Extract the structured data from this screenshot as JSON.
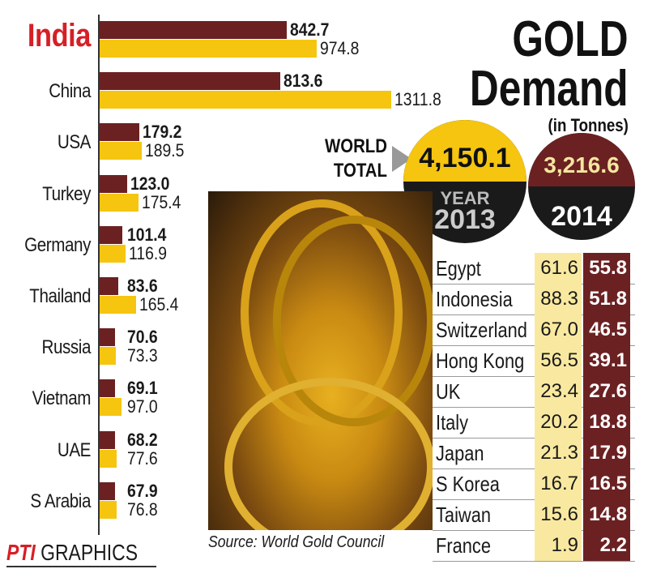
{
  "chart_data": {
    "type": "bar",
    "title": "GOLD Demand",
    "subtitle": "(in Tonnes)",
    "categories": [
      "India",
      "China",
      "USA",
      "Turkey",
      "Germany",
      "Thailand",
      "Russia",
      "Vietnam",
      "UAE",
      "S Arabia"
    ],
    "highlight_category": "India",
    "series": [
      {
        "name": "2014",
        "color": "#6b2122",
        "values": [
          842.7,
          813.6,
          179.2,
          123.0,
          101.4,
          83.6,
          70.6,
          69.1,
          68.2,
          67.9
        ],
        "labels": [
          "842.7",
          "813.6",
          "179.2",
          "123.0",
          "101.4",
          "83.6",
          "70.6",
          "69.1",
          "68.2",
          "67.9"
        ]
      },
      {
        "name": "2013",
        "color": "#f5c510",
        "values": [
          974.8,
          1311.8,
          189.5,
          175.4,
          116.9,
          165.4,
          73.3,
          97.0,
          77.6,
          76.8
        ],
        "labels": [
          "974.8",
          "1311.8",
          "189.5",
          "175.4",
          "116.9",
          "165.4",
          "73.3",
          "97.0",
          "77.6",
          "76.8"
        ]
      }
    ],
    "xlim": [
      0,
      1311.8
    ],
    "table": {
      "type": "table",
      "rows": [
        {
          "country": "Egypt",
          "y2013": "61.6",
          "y2014": "55.8"
        },
        {
          "country": "Indonesia",
          "y2013": "88.3",
          "y2014": "51.8"
        },
        {
          "country": "Switzerland",
          "y2013": "67.0",
          "y2014": "46.5"
        },
        {
          "country": "Hong Kong",
          "y2013": "56.5",
          "y2014": "39.1"
        },
        {
          "country": "UK",
          "y2013": "23.4",
          "y2014": "27.6"
        },
        {
          "country": "Italy",
          "y2013": "20.2",
          "y2014": "18.8"
        },
        {
          "country": "Japan",
          "y2013": "21.3",
          "y2014": "17.9"
        },
        {
          "country": "S Korea",
          "y2013": "16.7",
          "y2014": "16.5"
        },
        {
          "country": "Taiwan",
          "y2013": "15.6",
          "y2014": "14.8"
        },
        {
          "country": "France",
          "y2013": "1.9",
          "y2014": "2.2"
        }
      ]
    }
  },
  "title_line1": "GOLD",
  "title_line2": "Demand",
  "unit": "(in Tonnes)",
  "world_total_label": "WORLD TOTAL",
  "totals": {
    "y2013": {
      "value": "4,150.1",
      "year_label": "YEAR",
      "year": "2013"
    },
    "y2014": {
      "value": "3,216.6",
      "year": "2014"
    }
  },
  "source": "Source: World Gold Council",
  "credit": {
    "logo": "PTI",
    "word": "GRAPHICS"
  }
}
